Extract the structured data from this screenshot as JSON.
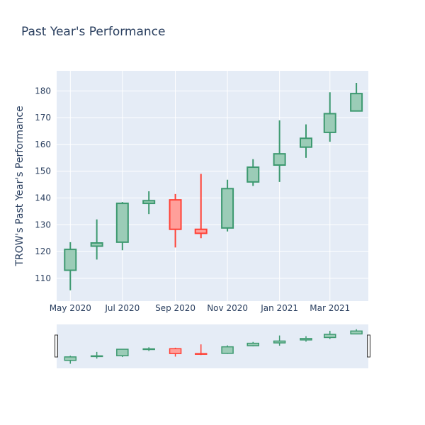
{
  "chart_data": {
    "type": "candlestick",
    "title": "Past Year's Performance",
    "ylabel": "TROW's Past Year's Performance",
    "xlabel": "",
    "ylim": [
      101.5,
      187.5
    ],
    "y_ticks": [
      110,
      120,
      130,
      140,
      150,
      160,
      170,
      180
    ],
    "x_tick_labels": [
      "May 2020",
      "Jul 2020",
      "Sep 2020",
      "Nov 2020",
      "Jan 2021",
      "Mar 2021"
    ],
    "x_tick_dates": [
      "2020-05-01",
      "2020-07-01",
      "2020-09-01",
      "2020-11-01",
      "2021-01-01",
      "2021-03-01"
    ],
    "x_range": [
      "2020-04-15",
      "2021-04-15"
    ],
    "grid": true,
    "rangeslider": true,
    "colors": {
      "increasing": "#3D9970",
      "increasing_fill": "#9BCCB7",
      "decreasing": "#FF4136",
      "decreasing_fill": "#FF9F9A",
      "plot_bg": "#E5ECF6",
      "grid": "#ffffff",
      "text": "#2a3f5f"
    },
    "candles": [
      {
        "date": "2020-05-01",
        "open": 113.0,
        "high": 123.5,
        "low": 105.5,
        "close": 120.8
      },
      {
        "date": "2020-06-01",
        "open": 122.0,
        "high": 132.0,
        "low": 117.0,
        "close": 123.2
      },
      {
        "date": "2020-07-01",
        "open": 123.5,
        "high": 138.5,
        "low": 120.5,
        "close": 138.0
      },
      {
        "date": "2020-08-01",
        "open": 138.0,
        "high": 142.5,
        "low": 134.0,
        "close": 139.0
      },
      {
        "date": "2020-09-01",
        "open": 139.3,
        "high": 141.5,
        "low": 121.5,
        "close": 128.3
      },
      {
        "date": "2020-10-01",
        "open": 128.3,
        "high": 149.0,
        "low": 125.0,
        "close": 126.8
      },
      {
        "date": "2020-11-01",
        "open": 128.8,
        "high": 146.8,
        "low": 127.5,
        "close": 143.5
      },
      {
        "date": "2020-12-01",
        "open": 146.0,
        "high": 154.5,
        "low": 144.5,
        "close": 151.5
      },
      {
        "date": "2021-01-01",
        "open": 152.3,
        "high": 169.0,
        "low": 146.0,
        "close": 156.5
      },
      {
        "date": "2021-02-01",
        "open": 159.0,
        "high": 167.5,
        "low": 155.0,
        "close": 162.3
      },
      {
        "date": "2021-03-01",
        "open": 164.5,
        "high": 179.5,
        "low": 161.0,
        "close": 171.5
      },
      {
        "date": "2021-04-01",
        "open": 172.5,
        "high": 183.0,
        "low": 172.3,
        "close": 179.0
      }
    ]
  }
}
